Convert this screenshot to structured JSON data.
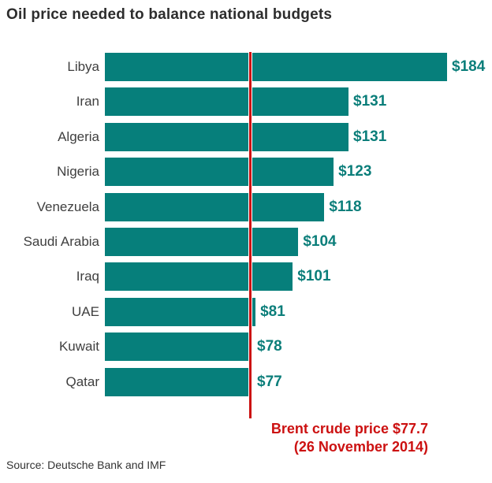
{
  "title": "Oil price needed to balance national budgets",
  "source": "Source: Deutsche Bank and IMF",
  "reference": {
    "line1": "Brent crude price $77.7",
    "line2": "(26 November 2014)"
  },
  "colors": {
    "bar": "#067f7b",
    "value_label": "#0b7e7a",
    "reference_line": "#cc1111",
    "annotation_text": "#cc1111",
    "title_text": "#2d2d2d",
    "category_label_text": "#3f3f3f",
    "source_text": "#333333",
    "background": "#ffffff"
  },
  "chart_data": {
    "type": "bar",
    "orientation": "horizontal",
    "title": "Oil price needed to balance national budgets",
    "categories": [
      "Libya",
      "Iran",
      "Algeria",
      "Nigeria",
      "Venezuela",
      "Saudi Arabia",
      "Iraq",
      "UAE",
      "Kuwait",
      "Qatar"
    ],
    "values": [
      184,
      131,
      131,
      123,
      118,
      104,
      101,
      81,
      78,
      77
    ],
    "value_labels": [
      "$184",
      "$131",
      "$131",
      "$123",
      "$118",
      "$104",
      "$101",
      "$81",
      "$78",
      "$77"
    ],
    "xlabel": "",
    "ylabel": "",
    "xlim": [
      0,
      200
    ],
    "axes_visible": false,
    "grid": false,
    "legend": null,
    "reference_line": {
      "value": 77.7,
      "label": "Brent crude price $77.7 (26 November 2014)"
    },
    "source": "Source: Deutsche Bank and IMF"
  }
}
